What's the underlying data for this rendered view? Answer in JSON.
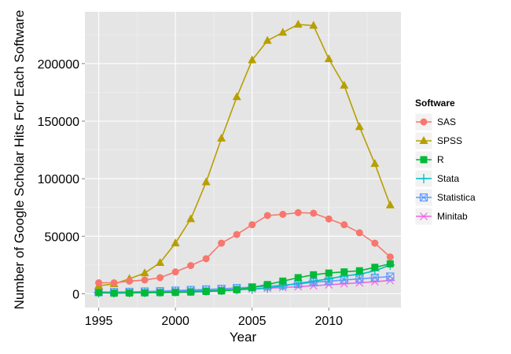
{
  "chart_data": {
    "type": "line",
    "xlabel": "Year",
    "ylabel": "Number of Google Scholar Hits For Each Software",
    "xlim": [
      1994.1,
      2014.7
    ],
    "ylim": [
      -12000,
      245000
    ],
    "x_ticks": [
      1995,
      2000,
      2005,
      2010
    ],
    "y_ticks": [
      0,
      50000,
      100000,
      150000,
      200000
    ],
    "grid": true,
    "legend_position": "right",
    "legend_title": "Software",
    "x": [
      1995,
      1996,
      1997,
      1998,
      1999,
      2000,
      2001,
      2002,
      2003,
      2004,
      2005,
      2006,
      2007,
      2008,
      2009,
      2010,
      2011,
      2012,
      2013,
      2014
    ],
    "series": [
      {
        "name": "SAS",
        "color": "#F8766D",
        "marker": "circle",
        "values": [
          9500,
          9500,
          11000,
          12000,
          14000,
          19000,
          24500,
          30500,
          44000,
          51500,
          60000,
          68000,
          69000,
          70500,
          70000,
          65000,
          60000,
          53000,
          44000,
          32000
        ]
      },
      {
        "name": "SPSS",
        "color": "#B79F00",
        "marker": "triangle",
        "values": [
          7000,
          8500,
          13000,
          18000,
          27000,
          44000,
          65000,
          97000,
          135000,
          171000,
          203000,
          220000,
          227000,
          234000,
          233000,
          204000,
          181000,
          145000,
          113000,
          77000
        ]
      },
      {
        "name": "R",
        "color": "#00BA38",
        "marker": "square",
        "values": [
          1000,
          500,
          700,
          800,
          1000,
          1200,
          1500,
          2000,
          2500,
          3500,
          5500,
          8000,
          11000,
          14000,
          16500,
          18000,
          19000,
          20000,
          23000,
          26000
        ]
      },
      {
        "name": "Stata",
        "color": "#00BFC4",
        "marker": "plus",
        "values": [
          800,
          800,
          1000,
          1200,
          1500,
          1800,
          2200,
          2500,
          3000,
          3500,
          4000,
          5000,
          7000,
          9000,
          11000,
          13000,
          15500,
          17000,
          20000,
          25000
        ]
      },
      {
        "name": "Statistica",
        "color": "#619CFF",
        "marker": "boxcross",
        "values": [
          1500,
          1500,
          1700,
          2000,
          2300,
          2800,
          3300,
          3800,
          4300,
          5000,
          5700,
          6500,
          7500,
          8500,
          10000,
          11000,
          12000,
          13000,
          14000,
          15000
        ]
      },
      {
        "name": "Minitab",
        "color": "#F564E3",
        "marker": "asterisk",
        "values": [
          1200,
          1300,
          1500,
          1700,
          2000,
          2200,
          2500,
          2800,
          3200,
          3700,
          4200,
          4800,
          5500,
          6200,
          7000,
          7800,
          8700,
          9500,
          10500,
          11500
        ]
      }
    ]
  }
}
